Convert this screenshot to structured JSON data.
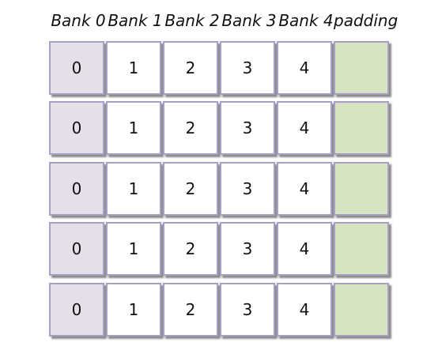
{
  "headers": [
    "Bank 0",
    "Bank 1",
    "Bank 2",
    "Bank 3",
    "Bank 4",
    "padding"
  ],
  "rows": [
    [
      "0",
      "1",
      "2",
      "3",
      "4",
      ""
    ],
    [
      "0",
      "1",
      "2",
      "3",
      "4",
      ""
    ],
    [
      "0",
      "1",
      "2",
      "3",
      "4",
      ""
    ],
    [
      "0",
      "1",
      "2",
      "3",
      "4",
      ""
    ],
    [
      "0",
      "1",
      "2",
      "3",
      "4",
      ""
    ]
  ],
  "colors": {
    "bank0_fill": "#e5dfea",
    "bank_fill": "#ffffff",
    "padding_fill": "#d7e4c1",
    "border": "#a79fc4"
  }
}
